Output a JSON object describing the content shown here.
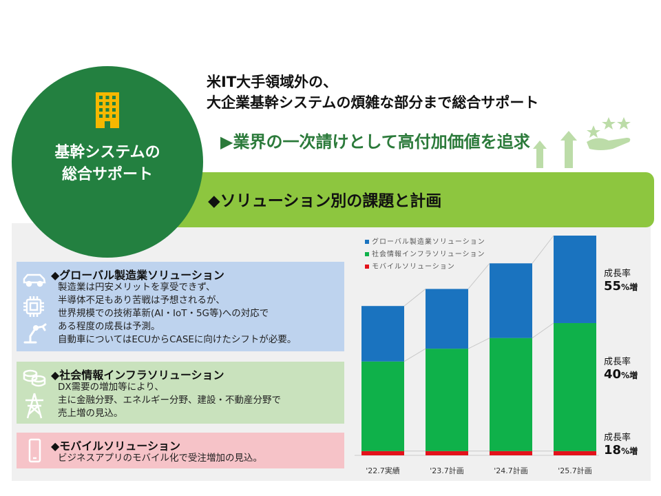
{
  "headline": {
    "line1": "米IT大手領域外の、",
    "line2": "大企業基幹システムの煩雑な部分まで総合サポート"
  },
  "tagline": "▶業界の一次請けとして高付加価値を追求",
  "circle": {
    "line1": "基幹システムの",
    "line2": "総合サポート",
    "icon": "building-icon",
    "color": "#238040"
  },
  "banner": {
    "label": "◆ソリューション別の課題と計画",
    "color": "#8dc63f"
  },
  "cards": [
    {
      "title": "◆グローバル製造業ソリューション",
      "icons": [
        "car-icon",
        "chip-icon",
        "robot-arm-icon"
      ],
      "lines": [
        "製造業は円安メリットを享受できず、",
        "半導体不足もあり苦戦は予想されるが、",
        "世界規模での技術革新(AI・IoT・5G等)への対応で",
        "ある程度の成長は予測。",
        "自動車についてはECUからCASEに向けたシフトが必要。"
      ]
    },
    {
      "title": "◆社会情報インフラソリューション",
      "icons": [
        "coins-icon",
        "power-tower-icon"
      ],
      "lines": [
        "DX需要の増加等により、",
        "主に金融分野、エネルギー分野、建設・不動産分野で",
        "売上増の見込。"
      ]
    },
    {
      "title": "◆モバイルソリューション",
      "icons": [
        "smartphone-icon"
      ],
      "lines": [
        "ビジネスアプリのモバイル化で受注増加の見込。"
      ]
    }
  ],
  "chart_data": {
    "type": "bar",
    "stacked": true,
    "categories": [
      "'22.7実績",
      "'23.7計画",
      "'24.7計画",
      "'25.7計画"
    ],
    "series": [
      {
        "name": "モバイルソリューション",
        "color": "#e3121b",
        "values": [
          2,
          2,
          2,
          2
        ]
      },
      {
        "name": "社会情報インフラソリューション",
        "color": "#0fb14a",
        "values": [
          42,
          48,
          53,
          60
        ]
      },
      {
        "name": "グローバル製造業ソリューション",
        "color": "#1a73bf",
        "values": [
          26,
          28,
          35,
          41
        ]
      }
    ],
    "legend_order": [
      "グローバル製造業ソリューション",
      "社会情報インフラソリューション",
      "モバイルソリューション"
    ],
    "legend_position": "top-left",
    "ylim": [
      0,
      103
    ],
    "annotations": [
      {
        "label": "成長率",
        "value": "55",
        "unit": "%増"
      },
      {
        "label": "成長率",
        "value": "40",
        "unit": "%増"
      },
      {
        "label": "成長率",
        "value": "18",
        "unit": "%増"
      }
    ]
  }
}
